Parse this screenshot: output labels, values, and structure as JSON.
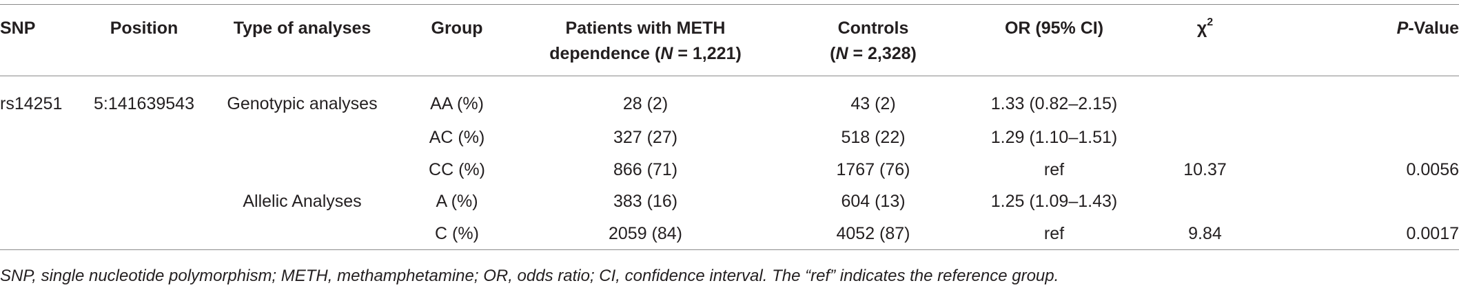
{
  "table": {
    "headers": {
      "snp": "SNP",
      "position": "Position",
      "type": "Type of analyses",
      "group": "Group",
      "patients_line1": "Patients with METH",
      "patients_line2_pre": "dependence (",
      "patients_n": "N",
      "patients_line2_post": " = 1,221)",
      "controls_line1": "Controls",
      "controls_line2_pre": "(",
      "controls_n": "N",
      "controls_line2_post": " = 2,328)",
      "or": "OR (95% CI)",
      "chi": "χ",
      "chi_sup": "2",
      "p_italic": "P",
      "p_rest": "-Value"
    },
    "rows": [
      {
        "snp": "rs14251",
        "position": "5:141639543",
        "type": "Genotypic analyses",
        "group": "AA (%)",
        "patients": "28 (2)",
        "controls": "43 (2)",
        "or": "1.33 (0.82–2.15)",
        "chi": "",
        "p": ""
      },
      {
        "snp": "",
        "position": "",
        "type": "",
        "group": "AC (%)",
        "patients": "327 (27)",
        "controls": "518 (22)",
        "or": "1.29 (1.10–1.51)",
        "chi": "",
        "p": ""
      },
      {
        "snp": "",
        "position": "",
        "type": "",
        "group": "CC (%)",
        "patients": "866 (71)",
        "controls": "1767 (76)",
        "or": "ref",
        "chi": "10.37",
        "p": "0.0056"
      },
      {
        "snp": "",
        "position": "",
        "type": "Allelic Analyses",
        "group": "A (%)",
        "patients": "383 (16)",
        "controls": "604 (13)",
        "or": "1.25 (1.09–1.43)",
        "chi": "",
        "p": ""
      },
      {
        "snp": "",
        "position": "",
        "type": "",
        "group": "C (%)",
        "patients": "2059 (84)",
        "controls": "4052 (87)",
        "or": "ref",
        "chi": "9.84",
        "p": "0.0017"
      }
    ]
  },
  "footnote": "SNP, single nucleotide polymorphism; METH, methamphetamine; OR, odds ratio; CI, confidence interval. The “ref” indicates the reference group."
}
